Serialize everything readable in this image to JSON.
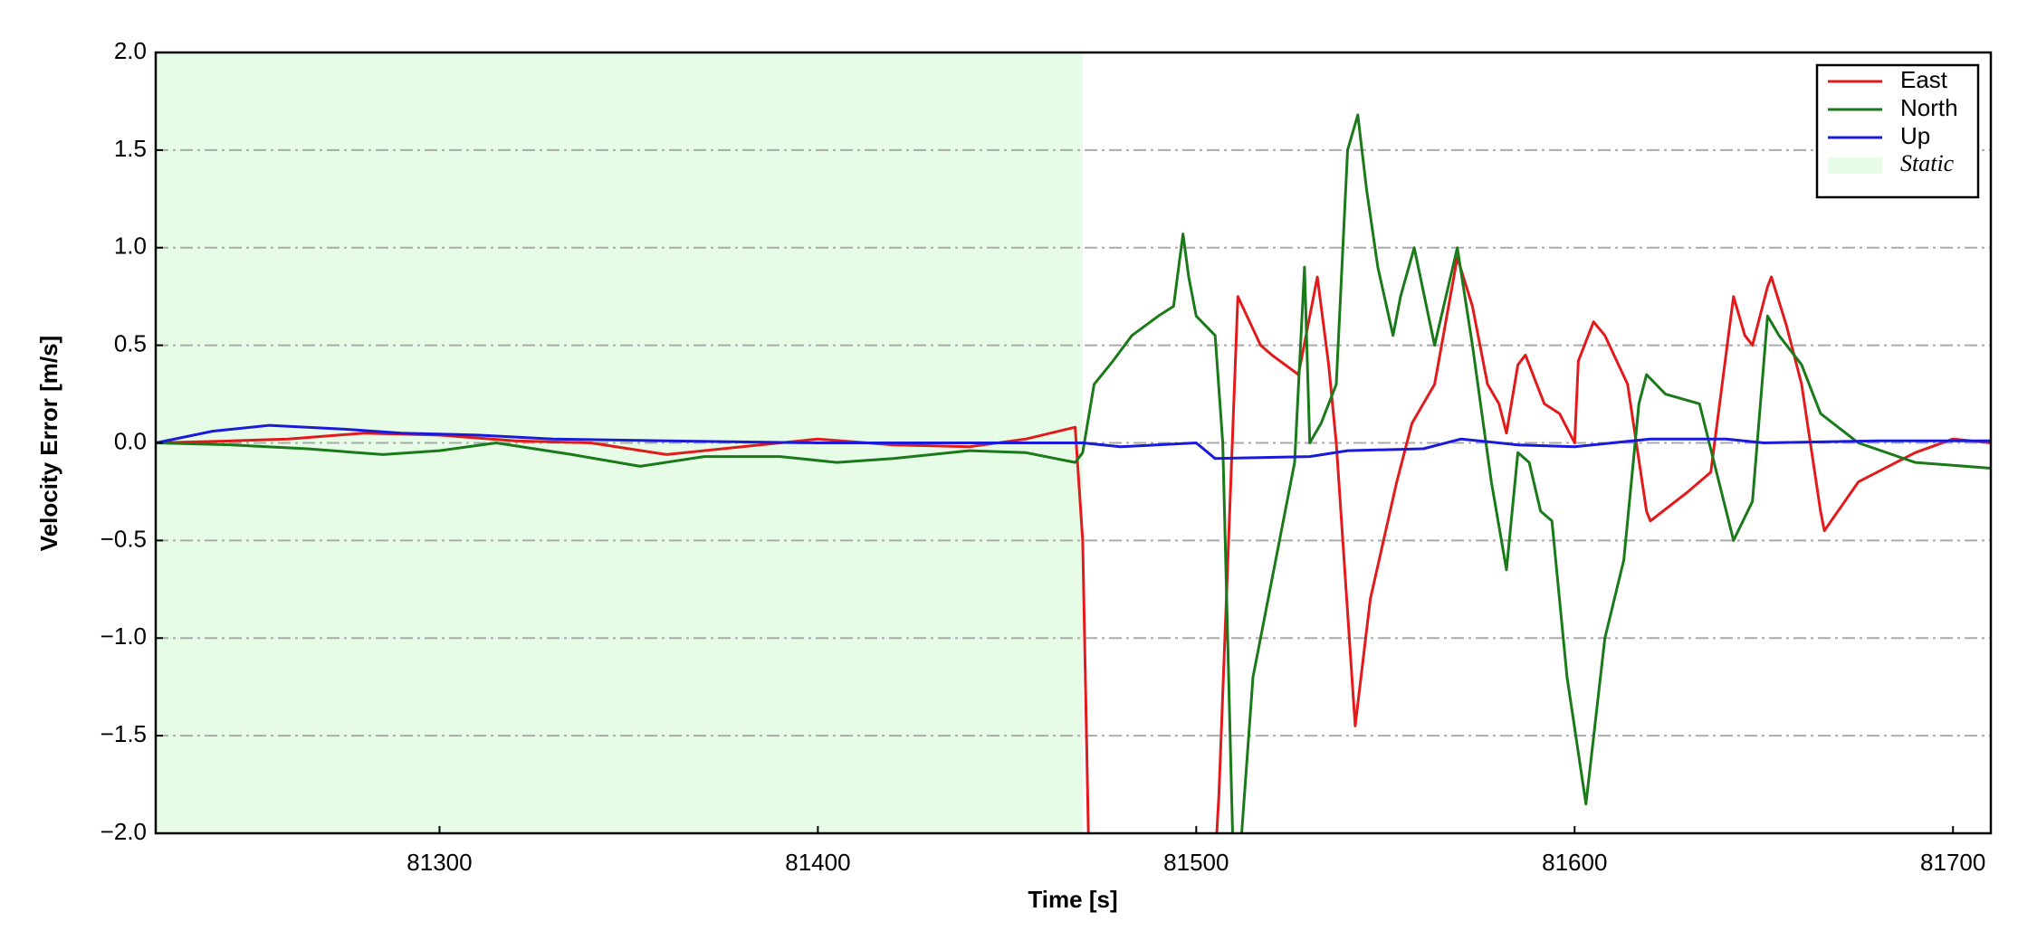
{
  "chart_data": {
    "type": "line",
    "xlabel": "Time [s]",
    "ylabel": "Velocity Error [m/s]",
    "xlim": [
      81225,
      81710
    ],
    "ylim": [
      -2.0,
      2.0
    ],
    "xticks": [
      81300,
      81400,
      81500,
      81600,
      81700
    ],
    "yticks": [
      {
        "value": -2.0,
        "label": "−2.0"
      },
      {
        "value": -1.5,
        "label": "−1.5"
      },
      {
        "value": -1.0,
        "label": "−1.0"
      },
      {
        "value": -0.5,
        "label": "−0.5"
      },
      {
        "value": 0.0,
        "label": "0.0"
      },
      0.5,
      {
        "value": 1.0,
        "label": "1.0"
      },
      1.5,
      {
        "value": 2.0,
        "label": "2.0"
      }
    ],
    "grid": true,
    "legend": "upper right",
    "shaded_regions": [
      {
        "name": "Static",
        "color": "#e6fce6",
        "x": [
          81225,
          81470
        ]
      }
    ],
    "series": [
      {
        "name": "East",
        "color": "#e31a1c",
        "x": [
          81225,
          81245,
          81260,
          81280,
          81300,
          81320,
          81340,
          81360,
          81380,
          81400,
          81420,
          81440,
          81455,
          81468,
          81470,
          81472,
          81504,
          81506,
          81511,
          81517,
          81520,
          81527,
          81532,
          81535,
          81537,
          81542,
          81546,
          81553,
          81557,
          81563,
          81569,
          81573,
          81577,
          81580,
          81582,
          81585,
          81587,
          81592,
          81596,
          81600,
          81601,
          81605,
          81608,
          81614,
          81619,
          81620,
          81630,
          81636,
          81640,
          81642,
          81645,
          81647,
          81651,
          81652,
          81656,
          81660,
          81665,
          81666,
          81675,
          81690,
          81700,
          81710
        ],
        "values": [
          0,
          0.01,
          0.02,
          0.05,
          0.04,
          0.01,
          0,
          -0.06,
          -0.02,
          0.02,
          -0.01,
          -0.02,
          0.02,
          0.08,
          -0.5,
          -2.5,
          -2.5,
          -1.8,
          0.75,
          0.5,
          0.45,
          0.35,
          0.85,
          0.4,
          0,
          -1.45,
          -0.8,
          -0.2,
          0.1,
          0.3,
          0.95,
          0.7,
          0.3,
          0.2,
          0.05,
          0.4,
          0.45,
          0.2,
          0.15,
          0,
          0.42,
          0.62,
          0.55,
          0.3,
          -0.35,
          -0.4,
          -0.25,
          -0.15,
          0.45,
          0.75,
          0.55,
          0.5,
          0.8,
          0.85,
          0.6,
          0.3,
          -0.35,
          -0.45,
          -0.2,
          -0.05,
          0.02,
          0
        ]
      },
      {
        "name": "North",
        "color": "#1a7a1a",
        "x": [
          81225,
          81245,
          81265,
          81285,
          81300,
          81315,
          81335,
          81353,
          81370,
          81390,
          81405,
          81420,
          81440,
          81455,
          81468,
          81470,
          81473,
          81478,
          81483,
          81490,
          81494,
          81496.5,
          81498,
          81500,
          81505,
          81507,
          81510,
          81512,
          81515,
          81522,
          81526,
          81528.6,
          81530,
          81533,
          81537,
          81540,
          81542.7,
          81545,
          81548,
          81552,
          81554,
          81557.6,
          81563,
          81569,
          81573,
          81578,
          81582,
          81585,
          81588,
          81591,
          81594,
          81598,
          81603,
          81608,
          81613,
          81617,
          81619,
          81624,
          81633,
          81642,
          81647,
          81651,
          81654,
          81660,
          81665,
          81675,
          81690,
          81710
        ],
        "values": [
          0,
          -0.01,
          -0.03,
          -0.06,
          -0.04,
          0,
          -0.06,
          -0.12,
          -0.07,
          -0.07,
          -0.1,
          -0.08,
          -0.04,
          -0.05,
          -0.1,
          -0.05,
          0.3,
          0.42,
          0.55,
          0.65,
          0.7,
          1.07,
          0.85,
          0.65,
          0.55,
          0,
          -2.3,
          -2.0,
          -1.2,
          -0.5,
          -0.1,
          0.9,
          0,
          0.1,
          0.3,
          1.5,
          1.68,
          1.3,
          0.9,
          0.55,
          0.75,
          1.0,
          0.5,
          1.0,
          0.5,
          -0.2,
          -0.65,
          -0.05,
          -0.1,
          -0.35,
          -0.4,
          -1.2,
          -1.85,
          -1.0,
          -0.6,
          0.2,
          0.35,
          0.25,
          0.2,
          -0.5,
          -0.3,
          0.65,
          0.55,
          0.4,
          0.15,
          0,
          -0.1,
          -0.13
        ]
      },
      {
        "name": "Up",
        "color": "#1a1adb",
        "x": [
          81225,
          81240,
          81255,
          81275,
          81290,
          81310,
          81330,
          81360,
          81400,
          81440,
          81470,
          81480,
          81500,
          81505,
          81530,
          81540,
          81560,
          81570,
          81585,
          81600,
          81620,
          81640,
          81650,
          81680,
          81710
        ],
        "values": [
          0,
          0.06,
          0.09,
          0.07,
          0.05,
          0.04,
          0.02,
          0.01,
          0,
          0,
          0,
          -0.02,
          0,
          -0.08,
          -0.07,
          -0.04,
          -0.03,
          0.02,
          -0.01,
          -0.02,
          0.02,
          0.02,
          0,
          0.01,
          0.01
        ]
      }
    ]
  }
}
